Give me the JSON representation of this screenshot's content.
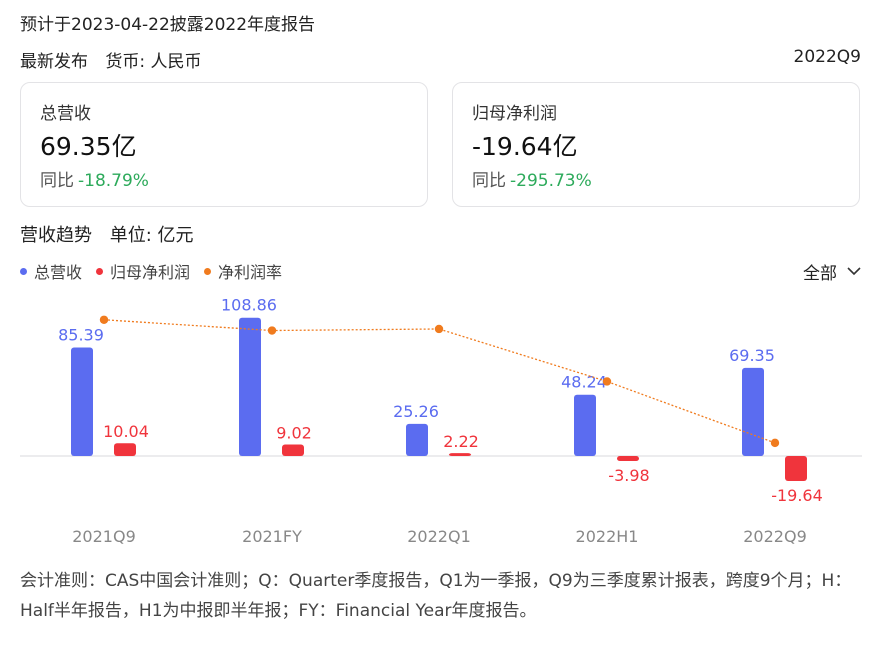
{
  "header": {
    "notice": "预计于2023-04-22披露2022年度报告",
    "latest_label": "最新发布",
    "currency_label": "货币: 人民币",
    "period": "2022Q9"
  },
  "cards": [
    {
      "label": "总营收",
      "value": "69.35亿",
      "yoy_label": "同比",
      "yoy_value": "-18.79%"
    },
    {
      "label": "归母净利润",
      "value": "-19.64亿",
      "yoy_label": "同比",
      "yoy_value": "-295.73%"
    }
  ],
  "trend": {
    "title": "营收趋势",
    "unit": "单位: 亿元",
    "filter": "全部"
  },
  "colors": {
    "revenue": "#5b6cf0",
    "net_profit": "#f0343c",
    "margin": "#f07b1e",
    "positive_change": "#2daa5b"
  },
  "chart_data": {
    "type": "bar",
    "categories": [
      "2021Q9",
      "2021FY",
      "2022Q1",
      "2022H1",
      "2022Q9"
    ],
    "series": [
      {
        "name": "总营收",
        "kind": "bar",
        "values": [
          85.39,
          108.86,
          25.26,
          48.24,
          69.35
        ],
        "labels": [
          "85.39",
          "108.86",
          "25.26",
          "48.24",
          "69.35"
        ]
      },
      {
        "name": "归母净利润",
        "kind": "bar",
        "values": [
          10.04,
          9.02,
          2.22,
          -3.98,
          -19.64
        ],
        "labels": [
          "10.04",
          "9.02",
          "2.22",
          "-3.98",
          "-19.64"
        ]
      },
      {
        "name": "净利润率",
        "kind": "line",
        "values": [
          11.8,
          8.3,
          8.8,
          -8.3,
          -28.3
        ]
      }
    ],
    "ylim": [
      -20,
      110
    ],
    "grid": false,
    "legend": "top-left"
  },
  "footnote": "会计准则：CAS中国会计准则；Q：Quarter季度报告，Q1为一季报，Q9为三季度累计报表，跨度9个月；H：Half半年报告，H1为中报即半年报；FY：Financial Year年度报告。"
}
